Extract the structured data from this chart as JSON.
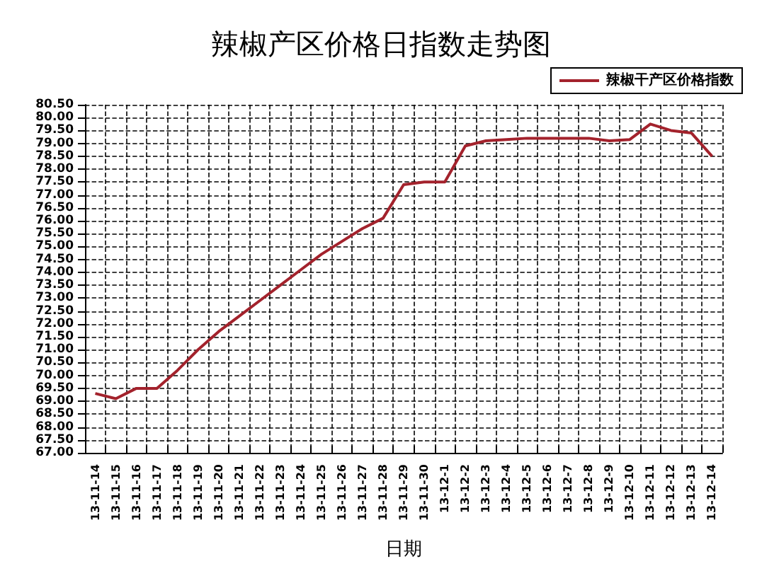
{
  "chart_data": {
    "type": "line",
    "title": "辣椒产区价格日指数走势图",
    "xlabel": "日期",
    "categories": [
      "13-11-14",
      "13-11-15",
      "13-11-16",
      "13-11-17",
      "13-11-18",
      "13-11-19",
      "13-11-20",
      "13-11-21",
      "13-11-22",
      "13-11-23",
      "13-11-24",
      "13-11-25",
      "13-11-26",
      "13-11-27",
      "13-11-28",
      "13-11-29",
      "13-11-30",
      "13-12-1",
      "13-12-2",
      "13-12-3",
      "13-12-4",
      "13-12-5",
      "13-12-6",
      "13-12-7",
      "13-12-8",
      "13-12-9",
      "13-12-10",
      "13-12-11",
      "13-12-12",
      "13-12-13",
      "13-12-14"
    ],
    "series": [
      {
        "name": "辣椒干产区价格指数",
        "color": "#a3222c",
        "values": [
          69.3,
          69.1,
          69.5,
          69.5,
          70.2,
          71.0,
          71.7,
          72.3,
          72.9,
          73.5,
          74.1,
          74.7,
          75.2,
          75.7,
          76.1,
          77.4,
          77.5,
          77.5,
          78.9,
          79.1,
          79.15,
          79.2,
          79.2,
          79.2,
          79.2,
          79.1,
          79.15,
          79.75,
          79.5,
          79.4,
          78.5
        ]
      }
    ],
    "ylim": [
      67,
      80.5
    ],
    "yticks": [
      {
        "value": 67,
        "label": "67.00"
      },
      {
        "value": 67.5,
        "label": "67.50"
      },
      {
        "value": 68,
        "label": "68.00"
      },
      {
        "value": 68.5,
        "label": "68.50"
      },
      {
        "value": 69,
        "label": "69.00"
      },
      {
        "value": 69.5,
        "label": "69.50"
      },
      {
        "value": 70,
        "label": "70.00"
      },
      {
        "value": 70.5,
        "label": "70.50"
      },
      {
        "value": 71,
        "label": "71.00"
      },
      {
        "value": 71.5,
        "label": "71.50"
      },
      {
        "value": 72,
        "label": "72.00"
      },
      {
        "value": 72.5,
        "label": "72.50"
      },
      {
        "value": 73,
        "label": "73.00"
      },
      {
        "value": 73.5,
        "label": "73.50"
      },
      {
        "value": 74,
        "label": "74.00"
      },
      {
        "value": 74.5,
        "label": "74.50"
      },
      {
        "value": 75,
        "label": "75.00"
      },
      {
        "value": 75.5,
        "label": "75.50"
      },
      {
        "value": 76,
        "label": "76.00"
      },
      {
        "value": 76.5,
        "label": "76.50"
      },
      {
        "value": 77,
        "label": "77.00"
      },
      {
        "value": 77.5,
        "label": "77.50"
      },
      {
        "value": 78,
        "label": "78.00"
      },
      {
        "value": 78.5,
        "label": "78.50"
      },
      {
        "value": 79,
        "label": "79.00"
      },
      {
        "value": 79.5,
        "label": "79.50"
      },
      {
        "value": 80,
        "label": "80.00"
      },
      {
        "value": 80.5,
        "label": "80.50"
      }
    ],
    "grid": true,
    "legend": "top right",
    "marker": "none",
    "line_style": "solid"
  }
}
